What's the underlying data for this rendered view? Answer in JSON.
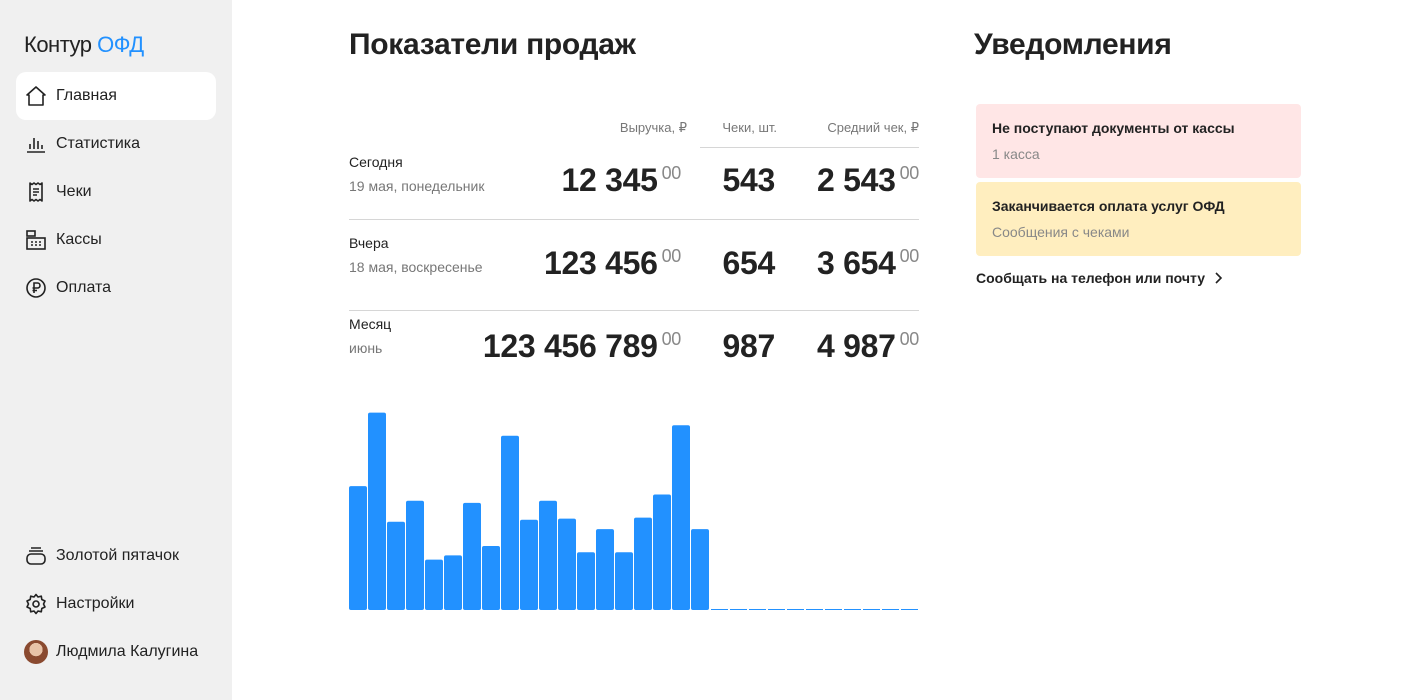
{
  "logo": {
    "brand": "Контур",
    "product": "ОФД"
  },
  "nav": {
    "top": [
      {
        "label": "Главная",
        "icon": "home-icon",
        "active": true
      },
      {
        "label": "Статистика",
        "icon": "bar-chart-icon"
      },
      {
        "label": "Чеки",
        "icon": "receipt-icon"
      },
      {
        "label": "Кассы",
        "icon": "cash-register-icon"
      },
      {
        "label": "Оплата",
        "icon": "ruble-icon"
      }
    ],
    "bottom": [
      {
        "label": "Золотой пятачок",
        "icon": "coins-icon"
      },
      {
        "label": "Настройки",
        "icon": "gear-icon"
      },
      {
        "label": "Людмила Калугина",
        "icon": "avatar"
      }
    ]
  },
  "sales": {
    "title": "Показатели продаж",
    "columns": {
      "revenue": "Выручка, ₽",
      "checks": "Чеки, шт.",
      "avg": "Средний чек, ₽"
    },
    "rows": [
      {
        "label": "Сегодня",
        "sub": "19 мая, понедельник",
        "revenue": "12 345",
        "revenue_kop": "00",
        "checks": "543",
        "avg": "2 543",
        "avg_kop": "00"
      },
      {
        "label": "Вчера",
        "sub": "18 мая, воскресенье",
        "revenue": "123 456",
        "revenue_kop": "00",
        "checks": "654",
        "avg": "3 654",
        "avg_kop": "00"
      },
      {
        "label": "Месяц",
        "sub": "июнь",
        "revenue": "123 456 789",
        "revenue_kop": "00",
        "checks": "987",
        "avg": "4 987",
        "avg_kop": "00"
      }
    ]
  },
  "chart_data": {
    "type": "bar",
    "color": "#2291ff",
    "values": [
      118,
      188,
      84,
      104,
      48,
      52,
      102,
      61,
      166,
      86,
      104,
      87,
      55,
      77,
      55,
      88,
      110,
      176,
      77,
      0,
      0,
      0,
      0,
      0,
      0,
      0,
      0,
      0,
      0,
      0
    ],
    "ylim": [
      0,
      200
    ]
  },
  "notifications": {
    "title": "Уведомления",
    "items": [
      {
        "title": "Не поступают документы от кассы",
        "sub": "1 касса",
        "color": "#ffe6e6"
      },
      {
        "title": "Заканчивается оплата услуг ОФД",
        "sub": "Сообщения с чеками",
        "color": "#ffeebf"
      }
    ],
    "link": "Сообщать на телефон или почту"
  }
}
